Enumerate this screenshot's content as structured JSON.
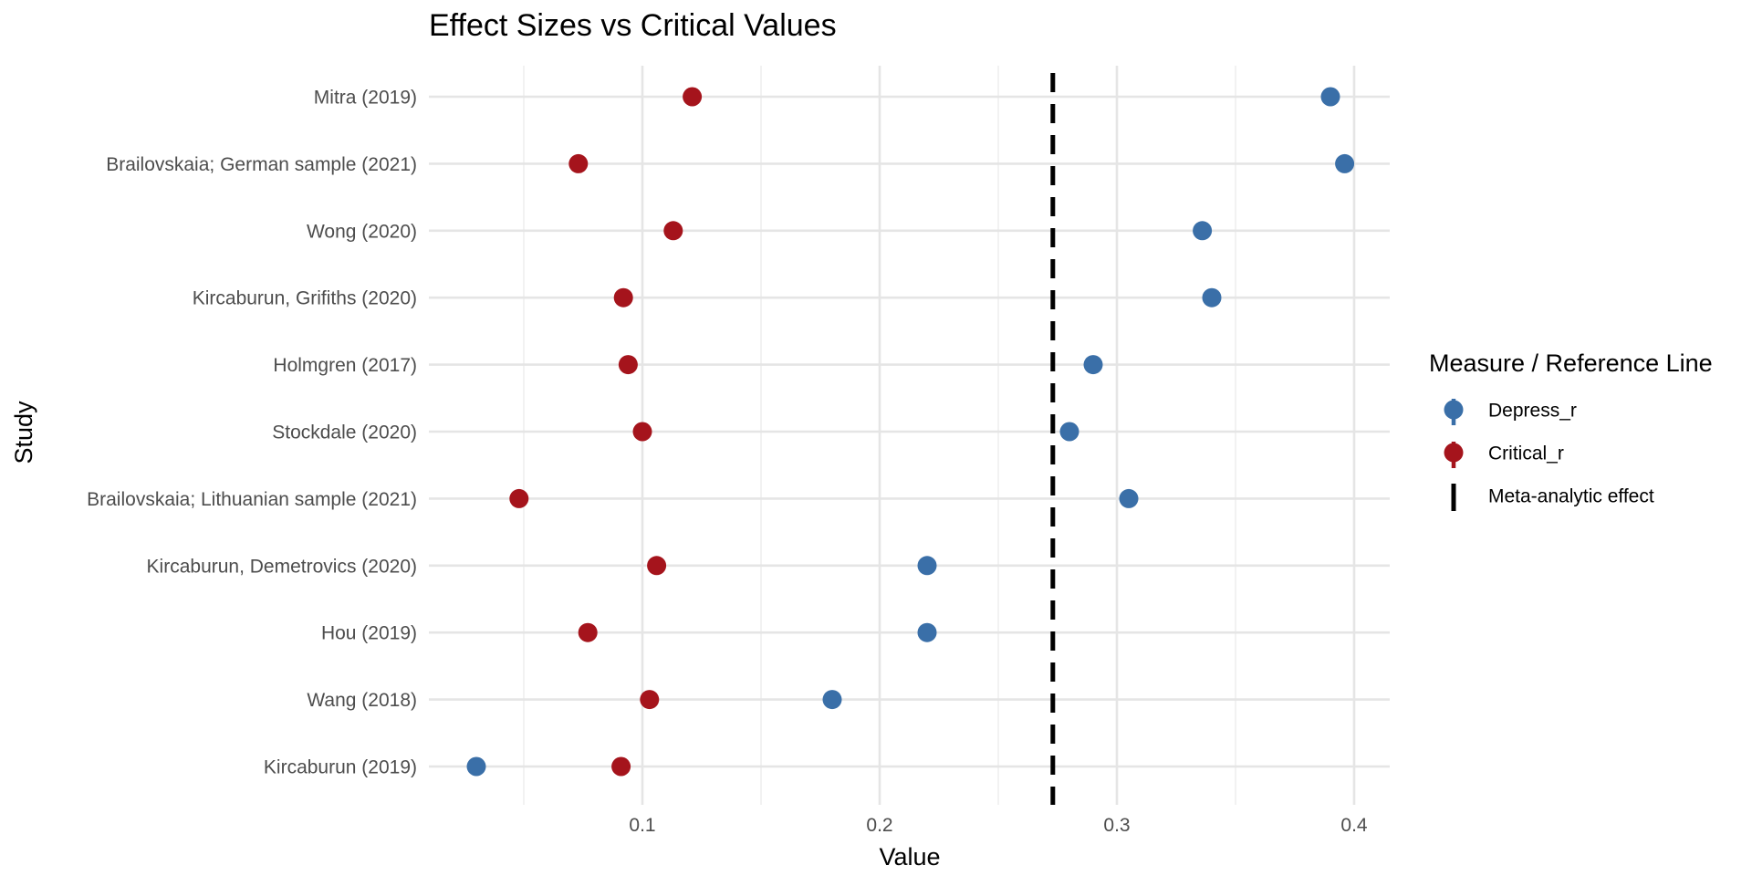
{
  "chart_data": {
    "type": "scatter",
    "title": "Effect Sizes vs Critical Values",
    "xlabel": "Value",
    "ylabel": "Study",
    "xlim": [
      0.01,
      0.415
    ],
    "x_ticks": [
      0.1,
      0.2,
      0.3,
      0.4
    ],
    "x_tick_labels": [
      "0.1",
      "0.2",
      "0.3",
      "0.4"
    ],
    "grid": true,
    "categories": [
      "Mitra (2019)",
      "Brailovskaia; German sample (2021)",
      "Wong (2020)",
      "Kircaburun, Grifiths (2020)",
      "Holmgren (2017)",
      "Stockdale (2020)",
      "Brailovskaia; Lithuanian sample (2021)",
      "Kircaburun, Demetrovics (2020)",
      "Hou (2019)",
      "Wang (2018)",
      "Kircaburun (2019)"
    ],
    "series": [
      {
        "name": "Depress_r",
        "color": "#3a6fa8",
        "values": [
          0.39,
          0.396,
          0.336,
          0.34,
          0.29,
          0.28,
          0.305,
          0.22,
          0.22,
          0.18,
          0.03
        ]
      },
      {
        "name": "Critical_r",
        "color": "#a5141c",
        "values": [
          0.121,
          0.073,
          0.113,
          0.092,
          0.094,
          0.1,
          0.048,
          0.106,
          0.077,
          0.103,
          0.091
        ]
      }
    ],
    "reference_line": {
      "name": "Meta-analytic effect",
      "value": 0.273,
      "style": "dashed",
      "color": "#000000"
    },
    "legend": {
      "title": "Measure / Reference Line",
      "position": "right"
    }
  }
}
